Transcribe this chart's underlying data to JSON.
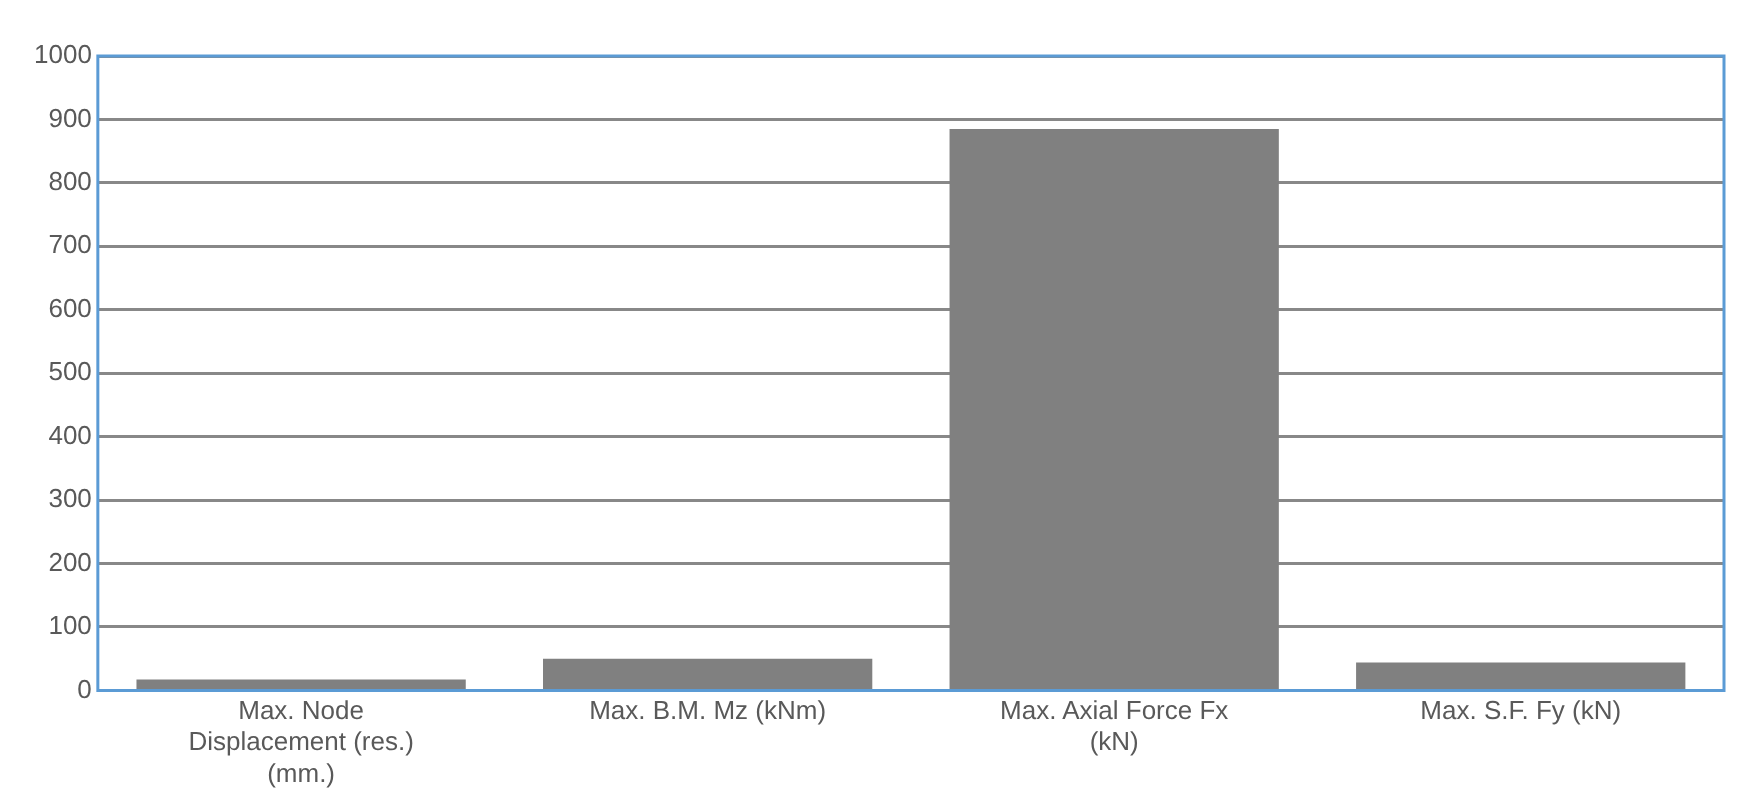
{
  "chart_data": {
    "type": "bar",
    "categories": [
      "Max. Node Displacement (res.) (mm.)",
      "Max. B.M. Mz (kNm)",
      "Max. Axial Force Fx (kN)",
      "Max. S.F. Fy (kN)"
    ],
    "values": [
      17,
      50,
      885,
      44
    ],
    "color": "#808080",
    "ylim": [
      0,
      1000
    ],
    "yticks": [
      0,
      100,
      200,
      300,
      400,
      500,
      600,
      700,
      800,
      900,
      1000
    ],
    "grid": "y"
  }
}
